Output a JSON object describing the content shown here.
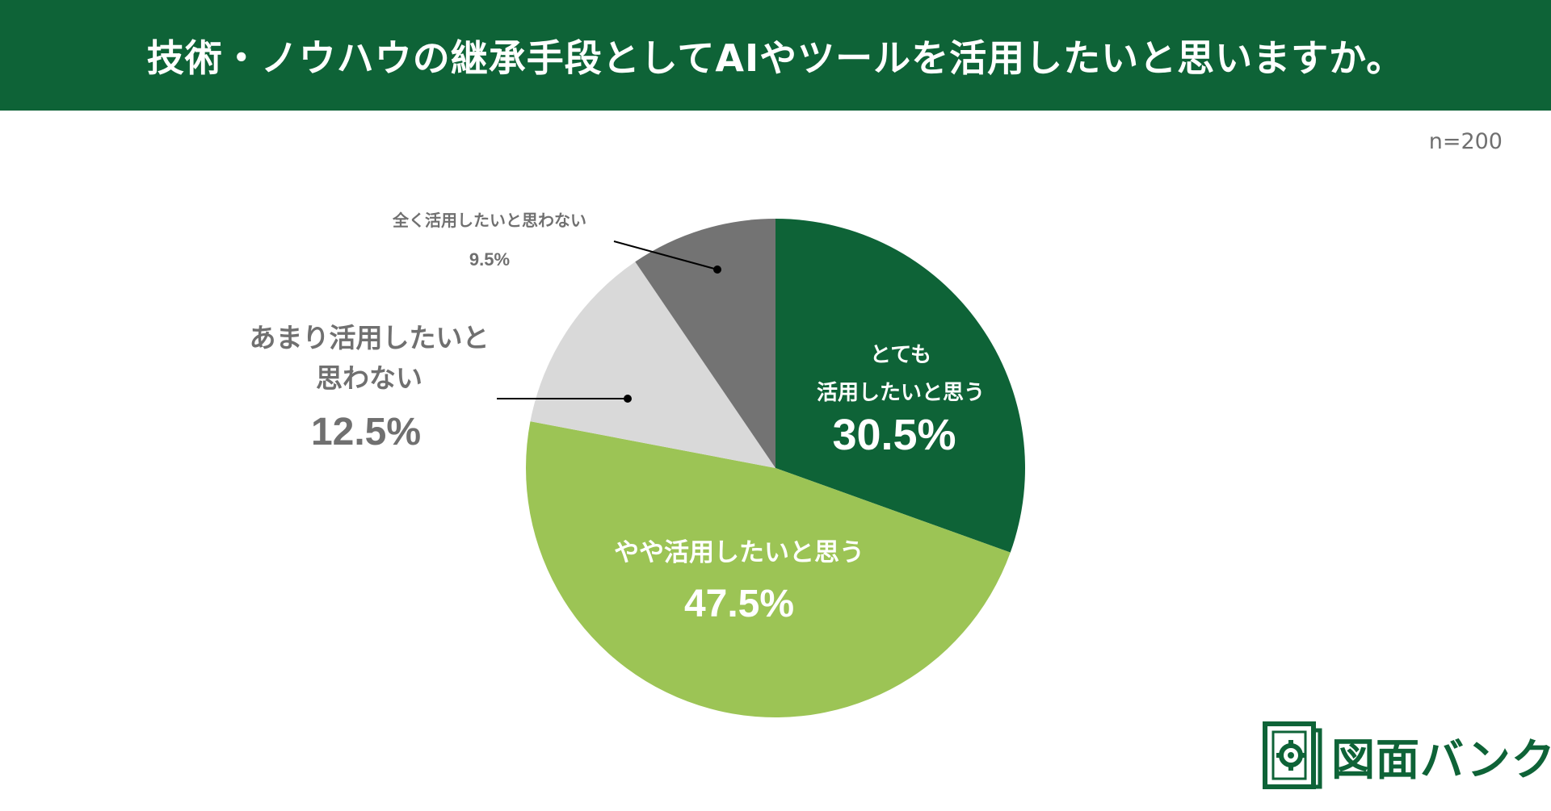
{
  "header": {
    "title": "技術・ノウハウの継承手段としてAIやツールを活用したいと思いますか。"
  },
  "sample_size": "n=200",
  "logo": {
    "text": "図面バンク",
    "icon": "blueprint-gear-icon"
  },
  "colors": {
    "header_bg": "#0e6337",
    "brand_green": "#0e6337"
  },
  "chart_data": {
    "type": "pie",
    "title": "技術・ノウハウの継承手段としてAIやツールを活用したいと思いますか。",
    "start_angle": "12 o'clock",
    "direction": "clockwise",
    "slices": [
      {
        "label": [
          "とても",
          "活用したいと思う"
        ],
        "value": 30.5,
        "value_label": "30.5%",
        "color": "#0e6337",
        "label_color": "#ffffff",
        "placement": "inside"
      },
      {
        "label": [
          "やや活用したいと思う"
        ],
        "value": 47.5,
        "value_label": "47.5%",
        "color": "#9cc455",
        "label_color": "#ffffff",
        "placement": "inside"
      },
      {
        "label": [
          "あまり活用したいと",
          "思わない"
        ],
        "value": 12.5,
        "value_label": "12.5%",
        "color": "#d9d9d9",
        "label_color": "#707070",
        "placement": "outside-left"
      },
      {
        "label": [
          "全く活用したいと思わない"
        ],
        "value": 9.5,
        "value_label": "9.5%",
        "color": "#737373",
        "label_color": "#707070",
        "placement": "outside-top-left"
      }
    ]
  }
}
